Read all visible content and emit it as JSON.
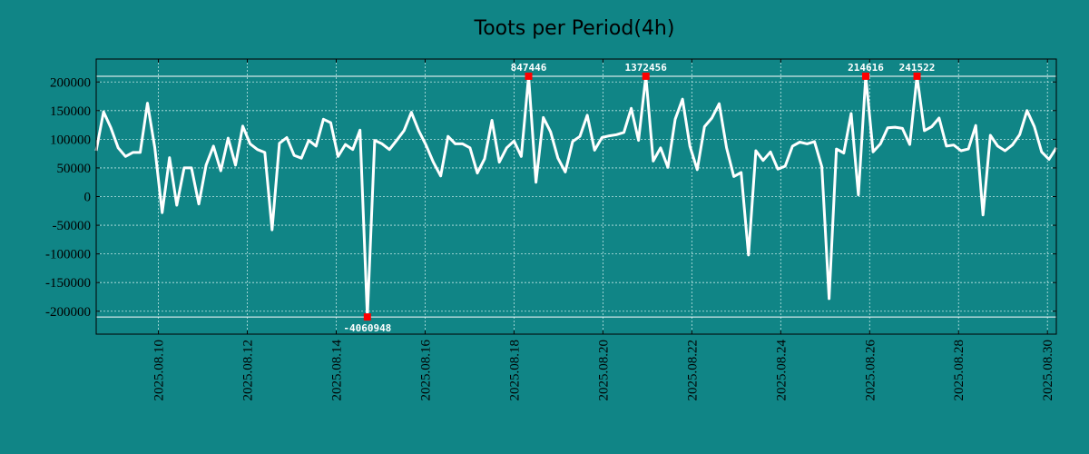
{
  "chart_data": {
    "type": "line",
    "title": "Toots per Period(4h)",
    "xlabel": "",
    "ylabel": "",
    "xlim": [
      0,
      21.6
    ],
    "ylim": [
      -240000,
      240000
    ],
    "grid": true,
    "colors": {
      "background": "#108586",
      "plot_background": "#108586",
      "line": "#ffffff",
      "grid": "#bfe6e6",
      "marker": "#ff0000",
      "cap_line": "#ffffff",
      "axes": "#000000"
    },
    "yticks": [
      200000,
      150000,
      100000,
      50000,
      0,
      -50000,
      -100000,
      -150000,
      -200000
    ],
    "ytick_labels": [
      "200000",
      "150000",
      "100000",
      "50000",
      "0",
      "-50000",
      "-100000",
      "-150000",
      "-200000"
    ],
    "xtick_positions": [
      1.4,
      3.4,
      5.4,
      7.4,
      9.4,
      11.4,
      13.4,
      15.4,
      17.4,
      19.4,
      21.4
    ],
    "xtick_labels": [
      "2025.08.10",
      "2025.08.12",
      "2025.08.14",
      "2025.08.16",
      "2025.08.18",
      "2025.08.20",
      "2025.08.22",
      "2025.08.24",
      "2025.08.26",
      "2025.08.28",
      "2025.08.30"
    ],
    "cap_lines": [
      210000,
      -210000
    ],
    "series": [
      {
        "name": "toots",
        "values": [
          80000,
          148000,
          120000,
          85000,
          70000,
          77000,
          77000,
          163000,
          85000,
          -28000,
          68000,
          -15000,
          50000,
          50000,
          -13000,
          55000,
          88000,
          45000,
          102000,
          55000,
          123000,
          92000,
          82000,
          77000,
          -58000,
          93000,
          103000,
          72000,
          67000,
          98000,
          88000,
          135000,
          129000,
          70000,
          91000,
          82000,
          116000,
          -210000,
          98000,
          92000,
          82000,
          98000,
          115000,
          147000,
          115000,
          90000,
          60000,
          36000,
          105000,
          92000,
          92000,
          85000,
          41000,
          66000,
          133000,
          60000,
          85000,
          97000,
          70000,
          210000,
          25000,
          138000,
          113000,
          67000,
          43000,
          96000,
          105000,
          142000,
          81000,
          103000,
          106000,
          108000,
          112000,
          154000,
          98000,
          210000,
          62000,
          85000,
          51000,
          135000,
          170000,
          88000,
          47000,
          122000,
          137000,
          162000,
          85000,
          35000,
          42000,
          -102000,
          80000,
          63000,
          78000,
          48000,
          53000,
          88000,
          95000,
          92000,
          96000,
          52000,
          -178000,
          83000,
          76000,
          145000,
          3000,
          210000,
          78000,
          92000,
          120000,
          121000,
          119000,
          91000,
          210000,
          115000,
          122000,
          137000,
          88000,
          90000,
          80000,
          83000,
          124000,
          -32000,
          107000,
          88000,
          80000,
          90000,
          108000,
          150000,
          122000,
          78000,
          65000,
          85000
        ]
      }
    ],
    "annotations": [
      {
        "index": 37,
        "label": "-4060948"
      },
      {
        "index": 59,
        "label": "847446"
      },
      {
        "index": 75,
        "label": "1372456"
      },
      {
        "index": 105,
        "label": "214616"
      },
      {
        "index": 112,
        "label": "241522"
      }
    ]
  }
}
